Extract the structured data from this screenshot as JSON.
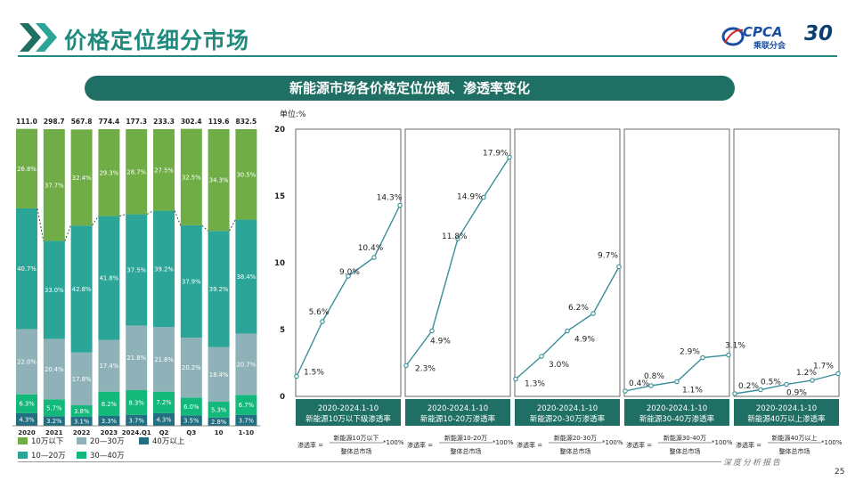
{
  "page": {
    "title": "价格定位细分市场",
    "banner": "新能源市场各价格定位份额、渗透率变化",
    "unit": "单位:%",
    "page_number": "25",
    "footer": "深度分析报告",
    "logo_text": "CPCA",
    "logo_sub": "乘联分会",
    "logo_30": "30"
  },
  "colors": {
    "brand": "#1f8a7d",
    "banner": "#1f6f64",
    "lt10": "#70ad47",
    "b10_20": "#2aa597",
    "b20_30": "#8fb2b8",
    "b30_40": "#12b97a",
    "gt40": "#216f80",
    "line": "#3a8f9a"
  },
  "chart_data": [
    {
      "type": "bar",
      "stacked": "100%",
      "categories": [
        "2020",
        "2021",
        "2022",
        "2023",
        "2024.Q1",
        "Q2",
        "Q3",
        "10",
        "1-10"
      ],
      "totals": [
        "111.0",
        "298.7",
        "567.8",
        "774.4",
        "177.3",
        "233.3",
        "302.4",
        "119.6",
        "832.5"
      ],
      "series": [
        {
          "name": "40万以上",
          "key": "gt40",
          "values": [
            4.3,
            3.2,
            3.1,
            3.3,
            3.7,
            4.3,
            3.5,
            2.8,
            3.7
          ]
        },
        {
          "name": "30—40万",
          "key": "b30_40",
          "values": [
            6.3,
            5.7,
            3.8,
            8.2,
            8.3,
            7.2,
            6.0,
            5.3,
            6.7
          ]
        },
        {
          "name": "20—30万",
          "key": "b20_30",
          "values": [
            22.0,
            20.4,
            17.8,
            17.4,
            21.8,
            21.8,
            20.2,
            18.4,
            20.7
          ]
        },
        {
          "name": "10—20万",
          "key": "b10_20",
          "values": [
            40.7,
            33.0,
            42.8,
            41.8,
            37.5,
            39.2,
            37.9,
            39.2,
            38.4
          ]
        },
        {
          "name": "10万以下",
          "key": "lt10",
          "values": [
            26.8,
            37.7,
            32.4,
            29.3,
            28.7,
            27.5,
            32.5,
            34.3,
            30.5
          ]
        }
      ],
      "legend": [
        {
          "name": "10万以下",
          "key": "lt10"
        },
        {
          "name": "20—30万",
          "key": "b20_30"
        },
        {
          "name": "40万以上",
          "key": "gt40"
        },
        {
          "name": "10—20万",
          "key": "b10_20"
        },
        {
          "name": "30—40万",
          "key": "b30_40"
        }
      ]
    },
    {
      "type": "line",
      "ylim": [
        0,
        20
      ],
      "yticks": [
        0,
        5,
        10,
        15,
        20
      ],
      "panels": [
        {
          "caption_line1": "2020-2024.1-10",
          "caption_line2": "新能源10万以下级渗透率",
          "formula_prefix": "渗透率 =",
          "formula_numerator": "新能源10万以下",
          "formula_denominator": "整体总市场",
          "formula_suffix": "*100%",
          "values": [
            1.5,
            5.6,
            9.0,
            10.4,
            14.3
          ],
          "labels": [
            "1.5%",
            "5.6%",
            "9.0%",
            "10.4%",
            "14.3%"
          ]
        },
        {
          "caption_line1": "2020-2024.1-10",
          "caption_line2": "新能源10-20万渗透率",
          "formula_prefix": "渗透率 =",
          "formula_numerator": "新能源10-20万",
          "formula_denominator": "整体总市场",
          "formula_suffix": "*100%",
          "values": [
            2.3,
            4.9,
            11.8,
            14.9,
            17.9
          ],
          "labels": [
            "2.3%",
            "4.9%",
            "11.8%",
            "14.9%",
            "17.9%"
          ]
        },
        {
          "caption_line1": "2020-2024.1-10",
          "caption_line2": "新能源20-30万渗透率",
          "formula_prefix": "渗透率 =",
          "formula_numerator": "新能源20-30万",
          "formula_denominator": "整体总市场",
          "formula_suffix": "*100%",
          "values": [
            1.3,
            3.0,
            4.9,
            6.2,
            9.7
          ],
          "labels": [
            "1.3%",
            "3.0%",
            "4.9%",
            "6.2%",
            "9.7%"
          ]
        },
        {
          "caption_line1": "2020-2024.1-10",
          "caption_line2": "新能源30-40万渗透率",
          "formula_prefix": "渗透率 =",
          "formula_numerator": "新能源30-40万",
          "formula_denominator": "整体总市场",
          "formula_suffix": "*100%",
          "values": [
            0.4,
            0.8,
            1.1,
            2.9,
            3.1
          ],
          "labels": [
            "0.4%",
            "0.8%",
            "1.1%",
            "2.9%",
            "3.1%"
          ]
        },
        {
          "caption_line1": "2020-2024.1-10",
          "caption_line2": "新能源40万以上渗透率",
          "formula_prefix": "渗透率 =",
          "formula_numerator": "新能源40万以上",
          "formula_denominator": "整体总市场",
          "formula_suffix": "*100%",
          "values": [
            0.2,
            0.5,
            0.9,
            1.2,
            1.7
          ],
          "labels": [
            "0.2%",
            "0.5%",
            "0.9%",
            "1.2%",
            "1.7%"
          ]
        }
      ]
    }
  ]
}
